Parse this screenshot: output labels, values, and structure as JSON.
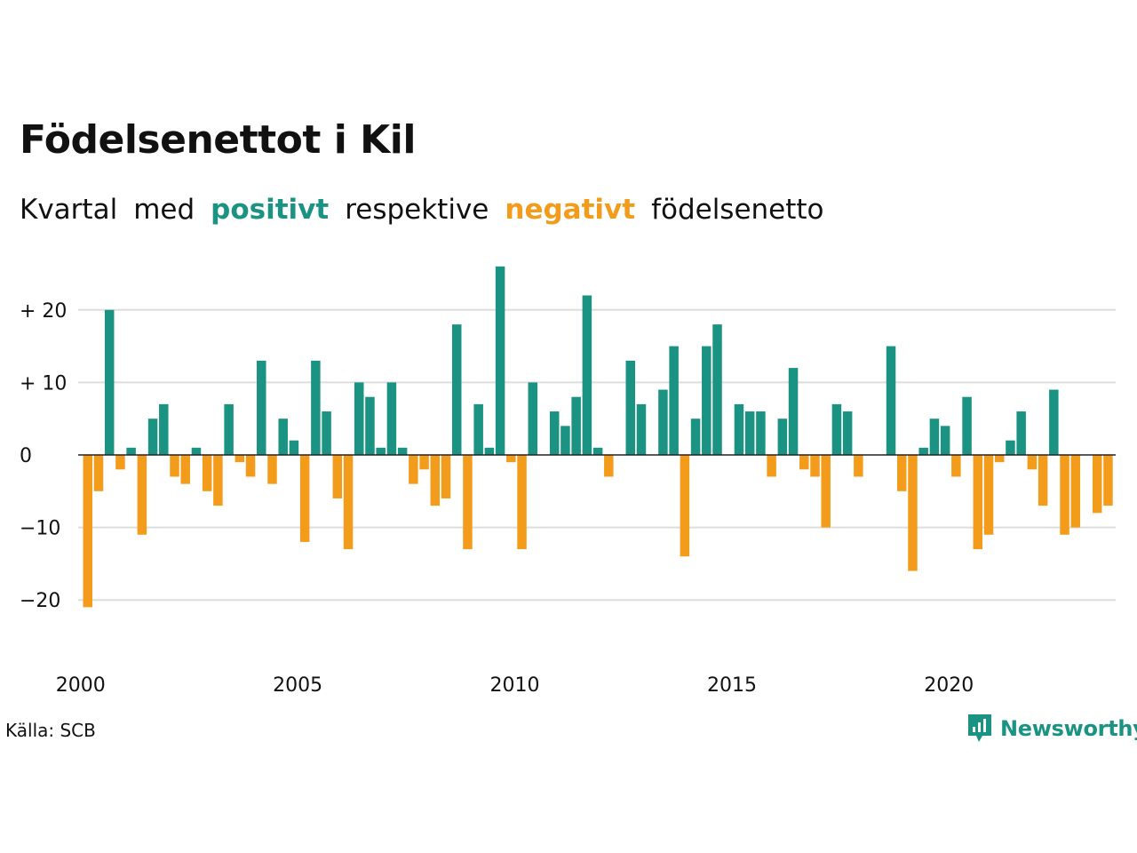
{
  "title": "Födelsenettot i Kil",
  "subtitle": {
    "w1": "Kvartal",
    "w2": "med",
    "positive_word": "positivt",
    "w3": "respektive",
    "negative_word": "negativt",
    "w4": "födelsenetto"
  },
  "source": "Källa: SCB",
  "brand": "Newsworthy",
  "colors": {
    "positive": "#1b9383",
    "negative": "#f39c1c",
    "grid": "#dddddd",
    "zero": "#222222"
  },
  "chart_data": {
    "type": "bar",
    "x_start": "2000 Q1",
    "x_ticks": [
      "2000",
      "2005",
      "2010",
      "2015",
      "2020"
    ],
    "y_ticks": [
      {
        "value": 20,
        "label": "+ 20"
      },
      {
        "value": 10,
        "label": "+ 10"
      },
      {
        "value": 0,
        "label": "0"
      },
      {
        "value": -10,
        "label": "−10"
      },
      {
        "value": -20,
        "label": "−20"
      }
    ],
    "ylim": [
      -24,
      27
    ],
    "grid": true,
    "values": [
      -21,
      -5,
      20,
      -2,
      1,
      -11,
      5,
      7,
      -3,
      -4,
      1,
      -5,
      -7,
      7,
      -1,
      -3,
      13,
      -4,
      5,
      2,
      -12,
      13,
      6,
      -6,
      -13,
      10,
      8,
      1,
      10,
      1,
      -4,
      -2,
      -7,
      -6,
      18,
      -13,
      7,
      1,
      26,
      -1,
      -13,
      10,
      0,
      6,
      4,
      8,
      22,
      1,
      -3,
      0,
      13,
      7,
      0,
      9,
      15,
      -14,
      5,
      15,
      18,
      0,
      7,
      6,
      6,
      -3,
      5,
      12,
      -2,
      -3,
      -10,
      7,
      6,
      -3,
      0,
      0,
      15,
      -5,
      -16,
      1,
      5,
      4,
      -3,
      8,
      -13,
      -11,
      -1,
      2,
      6,
      -2,
      -7,
      9,
      -11,
      -10,
      0,
      -8,
      -7
    ]
  }
}
